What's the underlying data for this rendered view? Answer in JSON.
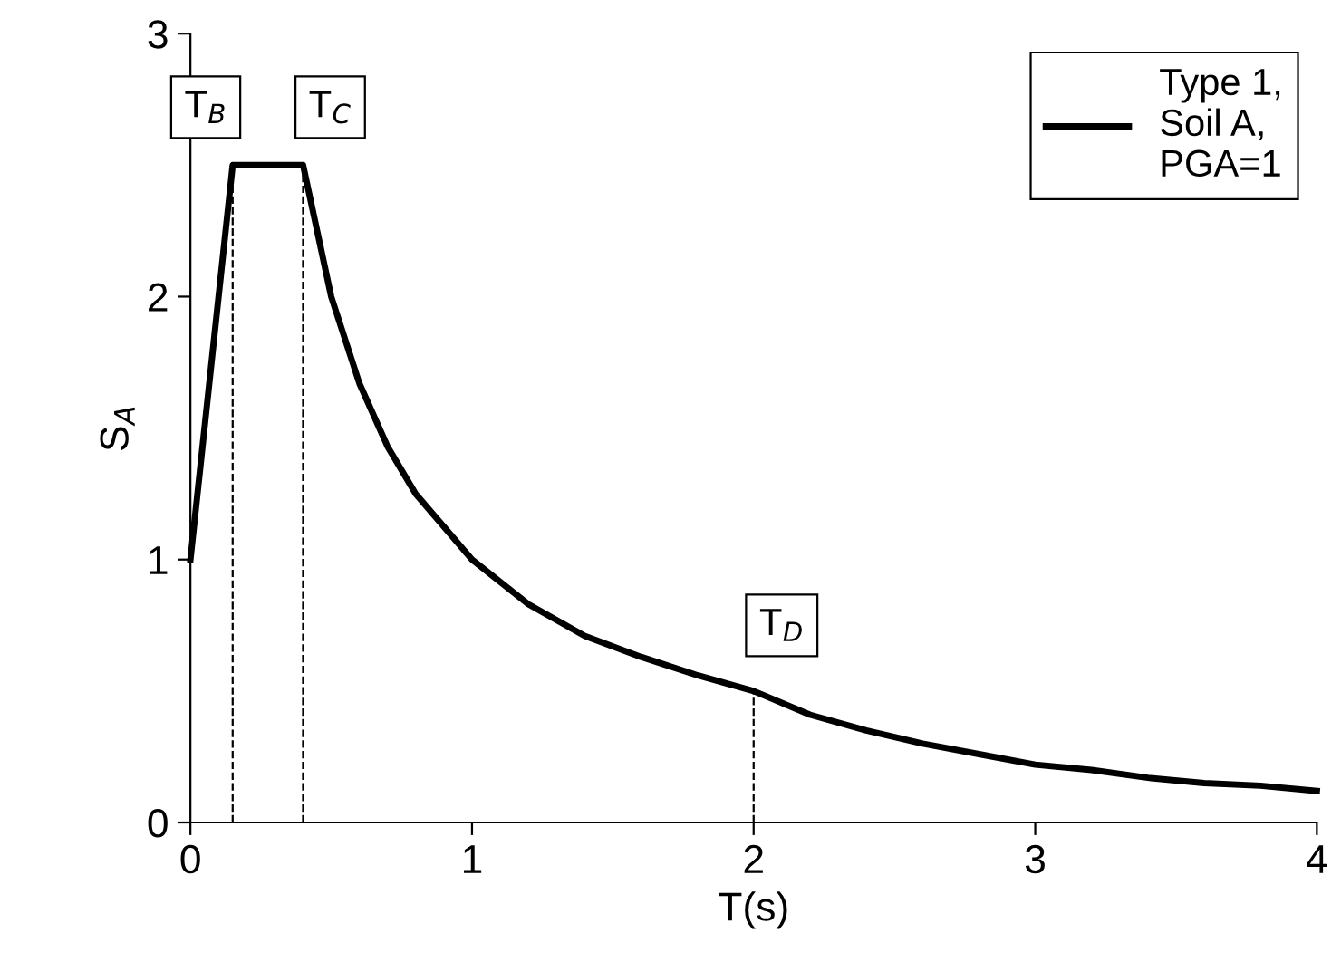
{
  "chart_data": {
    "type": "line",
    "xlabel": "T(s)",
    "ylabel": "S$_{A}$",
    "series": [
      {
        "name": "Type 1,\nSoil A,\nPGA=1",
        "color": "#000000",
        "x": [
          0,
          0.15,
          0.4,
          0.5,
          0.6,
          0.7,
          0.8,
          1.0,
          1.2,
          1.4,
          1.6,
          1.8,
          2.0,
          2.2,
          2.4,
          2.6,
          2.8,
          3.0,
          3.2,
          3.4,
          3.6,
          3.8,
          4.0
        ],
        "values": [
          1,
          2.5,
          2.5,
          2.0,
          1.67,
          1.43,
          1.25,
          1.0,
          0.83,
          0.71,
          0.63,
          0.56,
          0.5,
          0.41,
          0.35,
          0.3,
          0.26,
          0.22,
          0.2,
          0.17,
          0.15,
          0.14,
          0.12
        ]
      }
    ],
    "xlim": [
      0,
      4
    ],
    "xticks": [
      0,
      1,
      2,
      3,
      4
    ],
    "ylim": [
      0,
      3
    ],
    "yticks": [
      0,
      1,
      2,
      3
    ],
    "ref_lines": [
      {
        "axis": "x",
        "value": 0.15,
        "label": "T$_{B}$",
        "line_style": "dashed",
        "color": "#000000"
      },
      {
        "axis": "x",
        "value": 0.4,
        "label": "T$_{C}$",
        "line_style": "dashed",
        "color": "#000000"
      },
      {
        "axis": "x",
        "value": 2,
        "label": "T$_{D}$",
        "line_style": "dashed",
        "color": "#000000"
      }
    ],
    "grid": false,
    "legend": "top right",
    "line_style": "solid",
    "marker": "none"
  }
}
